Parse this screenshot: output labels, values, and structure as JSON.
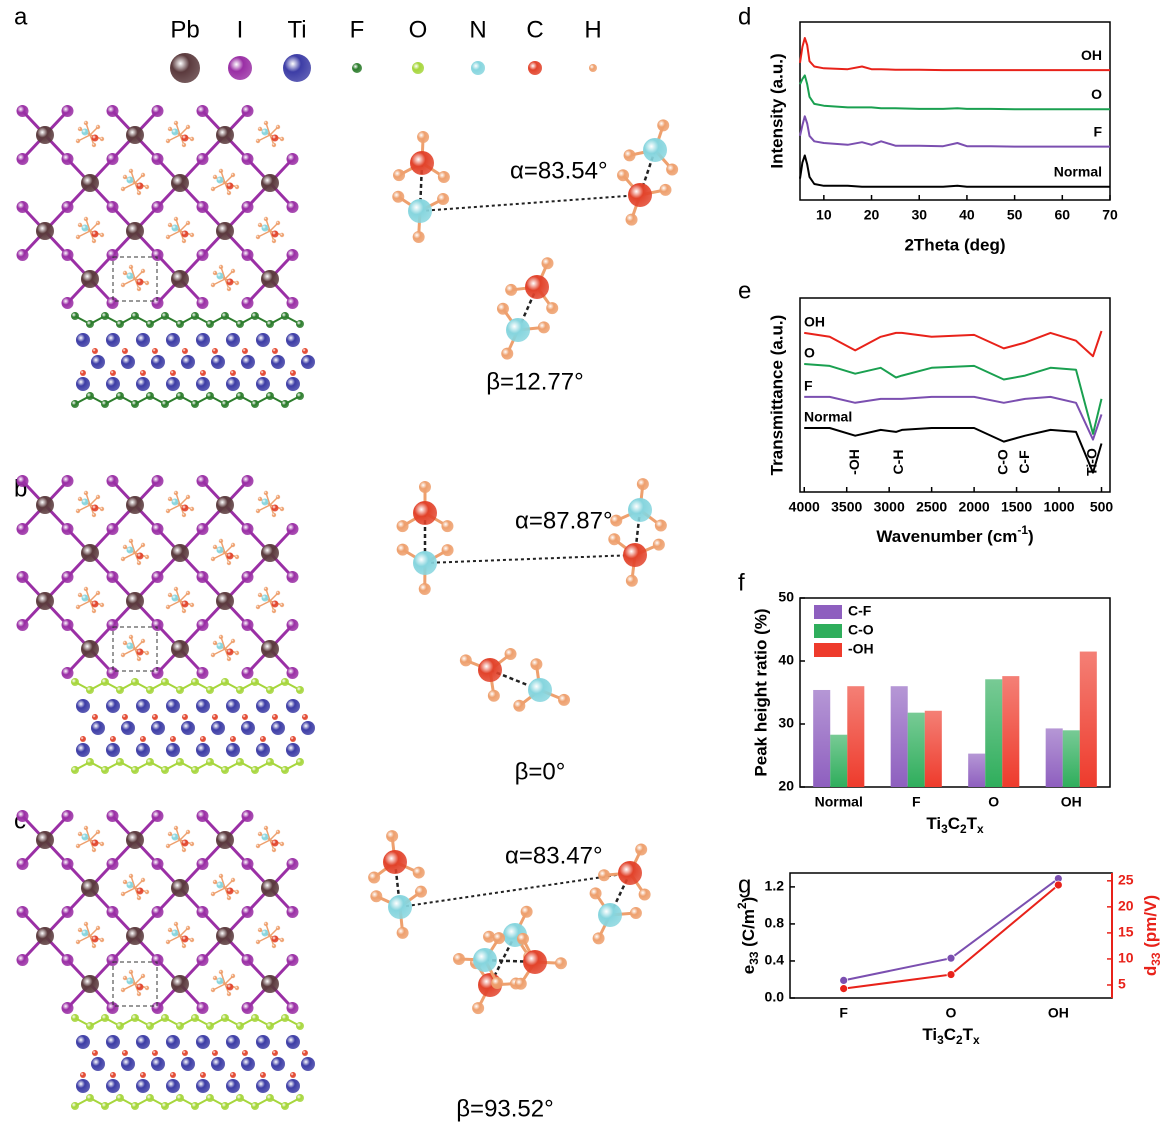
{
  "panel_labels": [
    "a",
    "b",
    "c",
    "d",
    "e",
    "f",
    "g"
  ],
  "elements": [
    {
      "symbol": "Pb",
      "color": "#5b3a3d"
    },
    {
      "symbol": "I",
      "color": "#9a2fa5"
    },
    {
      "symbol": "Ti",
      "color": "#3d3da6"
    },
    {
      "symbol": "F",
      "color": "#2d7d2d"
    },
    {
      "symbol": "O",
      "color": "#a6d63c"
    },
    {
      "symbol": "N",
      "color": "#86d5de"
    },
    {
      "symbol": "C",
      "color": "#e2432b"
    },
    {
      "symbol": "H",
      "color": "#eea06e"
    }
  ],
  "structures": [
    {
      "alpha": "α=83.54°",
      "beta": "β=12.77°"
    },
    {
      "alpha": "α=87.87°",
      "beta": "β=0°"
    },
    {
      "alpha": "α=83.47°",
      "beta": "β=93.52°"
    }
  ],
  "chart_data": [
    {
      "type": "line",
      "xlabel": "2Theta (deg)",
      "ylabel": "Intensity (a.u.)",
      "xlim": [
        5,
        70
      ],
      "xticks": [
        10,
        20,
        30,
        40,
        50,
        60,
        70
      ],
      "ylim": [
        0,
        10
      ],
      "x": [
        5,
        5.5,
        6,
        6.5,
        7,
        8,
        10,
        15,
        18,
        20,
        22,
        25,
        30,
        35,
        38,
        40,
        45,
        50,
        55,
        60,
        65,
        70
      ],
      "series": [
        {
          "name": "Normal",
          "color": "#000000",
          "values": [
            1.2,
            2.1,
            2.5,
            2.0,
            1.3,
            0.9,
            0.8,
            0.8,
            0.75,
            0.75,
            0.75,
            0.75,
            0.75,
            0.75,
            0.8,
            0.75,
            0.75,
            0.74,
            0.74,
            0.74,
            0.74,
            0.74
          ]
        },
        {
          "name": "F",
          "color": "#7b4fb0",
          "values": [
            3.6,
            4.2,
            4.7,
            4.3,
            3.6,
            3.3,
            3.2,
            3.1,
            3.25,
            3.1,
            3.3,
            3.05,
            3.05,
            3.02,
            3.2,
            3.02,
            3.02,
            3.0,
            3.0,
            3.0,
            3.0,
            3.0
          ]
        },
        {
          "name": "O",
          "color": "#1aa050",
          "values": [
            6.5,
            6.8,
            7.0,
            6.5,
            5.8,
            5.4,
            5.3,
            5.2,
            5.2,
            5.2,
            5.15,
            5.15,
            5.12,
            5.12,
            5.15,
            5.12,
            5.12,
            5.1,
            5.1,
            5.1,
            5.1,
            5.1
          ]
        },
        {
          "name": "OH",
          "color": "#e8221a",
          "values": [
            7.7,
            8.6,
            9.1,
            8.7,
            7.8,
            7.5,
            7.4,
            7.35,
            7.5,
            7.35,
            7.35,
            7.32,
            7.32,
            7.3,
            7.3,
            7.3,
            7.3,
            7.3,
            7.3,
            7.3,
            7.3,
            7.3
          ]
        }
      ]
    },
    {
      "type": "line",
      "xlabel": [
        {
          "text": "Wavenumber (cm"
        },
        {
          "text": "-1",
          "shift": "super"
        },
        {
          "text": ")"
        }
      ],
      "ylabel": "Transmittance (a.u.)",
      "xlim": [
        4050,
        400
      ],
      "xticks": [
        4000,
        3500,
        3000,
        2500,
        2000,
        1500,
        1000,
        500
      ],
      "ylim": [
        0,
        10
      ],
      "x": [
        4000,
        3700,
        3400,
        3100,
        2920,
        2850,
        2500,
        2000,
        1650,
        1400,
        1100,
        800,
        600,
        500
      ],
      "series": [
        {
          "name": "Normal",
          "color": "#000000",
          "values": [
            3.3,
            3.3,
            2.9,
            3.2,
            3.1,
            3.2,
            3.3,
            3.3,
            2.6,
            2.9,
            3.2,
            3.1,
            1.0,
            2.5
          ]
        },
        {
          "name": "F",
          "color": "#7b4fb0",
          "values": [
            4.9,
            4.9,
            4.6,
            4.8,
            4.8,
            4.8,
            4.9,
            4.9,
            4.6,
            4.8,
            4.9,
            4.6,
            2.7,
            4.0
          ]
        },
        {
          "name": "O",
          "color": "#1aa050",
          "values": [
            6.6,
            6.5,
            6.1,
            6.4,
            5.9,
            6.0,
            6.4,
            6.5,
            5.8,
            6.0,
            6.4,
            6.3,
            3.0,
            4.8
          ]
        },
        {
          "name": "OH",
          "color": "#e8221a",
          "values": [
            8.2,
            8.0,
            7.3,
            8.0,
            8.2,
            8.2,
            8.0,
            8.1,
            7.4,
            7.7,
            8.2,
            7.8,
            7.0,
            8.3
          ]
        }
      ],
      "annotations": [
        {
          "text": "-OH",
          "x": 3400
        },
        {
          "text": "C-H",
          "x": 2880
        },
        {
          "text": "C-O",
          "x": 1650
        },
        {
          "text": "C-F",
          "x": 1400
        },
        {
          "text": "Ti-O",
          "x": 600
        }
      ]
    },
    {
      "type": "bar",
      "ylabel": "Peak height ratio (%)",
      "xlabel": [
        {
          "text": "Ti"
        },
        {
          "text": "3",
          "shift": "sub"
        },
        {
          "text": "C"
        },
        {
          "text": "2",
          "shift": "sub"
        },
        {
          "text": "T"
        },
        {
          "text": "x",
          "shift": "sub"
        }
      ],
      "categories": [
        "Normal",
        "F",
        "O",
        "OH"
      ],
      "ylim": [
        20,
        50
      ],
      "yticks": [
        20,
        30,
        40,
        50
      ],
      "legend": "upper left",
      "series": [
        {
          "name": "C-F",
          "color": "#8e5fbf",
          "values": [
            35.4,
            36.0,
            25.3,
            29.3
          ]
        },
        {
          "name": "C-O",
          "color": "#2fae5c",
          "values": [
            28.3,
            31.8,
            37.1,
            29.0
          ]
        },
        {
          "name": "-OH",
          "color": "#ee3b2c",
          "values": [
            36.0,
            32.1,
            37.6,
            41.5
          ]
        }
      ]
    },
    {
      "type": "line",
      "xlabel": [
        {
          "text": "Ti"
        },
        {
          "text": "3",
          "shift": "sub"
        },
        {
          "text": "C"
        },
        {
          "text": "2",
          "shift": "sub"
        },
        {
          "text": "T"
        },
        {
          "text": "x",
          "shift": "sub"
        }
      ],
      "ylabel": [
        {
          "text": "e"
        },
        {
          "text": "33",
          "shift": "sub"
        },
        {
          "text": " (C/m"
        },
        {
          "text": "2",
          "shift": "super"
        },
        {
          "text": ")"
        }
      ],
      "y2label": [
        {
          "text": "d"
        },
        {
          "text": "33",
          "shift": "sub"
        },
        {
          "text": " (pm/V)"
        }
      ],
      "categories": [
        "F",
        "O",
        "OH"
      ],
      "ylim": [
        0,
        1.35
      ],
      "yticks": [
        {
          "value": 0,
          "label": "0.0"
        },
        0.4,
        0.8,
        1.2
      ],
      "y2lim": [
        2.5,
        26.5
      ],
      "y2ticks": [
        5,
        10,
        15,
        20,
        25
      ],
      "y2color": "#e8221a",
      "series": [
        {
          "color": "#7b4fb0",
          "values": [
            0.19,
            0.43,
            1.29
          ]
        },
        {
          "color": "#e8221a",
          "axis": "y2",
          "values": [
            4.3,
            7.0,
            24.2
          ]
        }
      ]
    }
  ]
}
